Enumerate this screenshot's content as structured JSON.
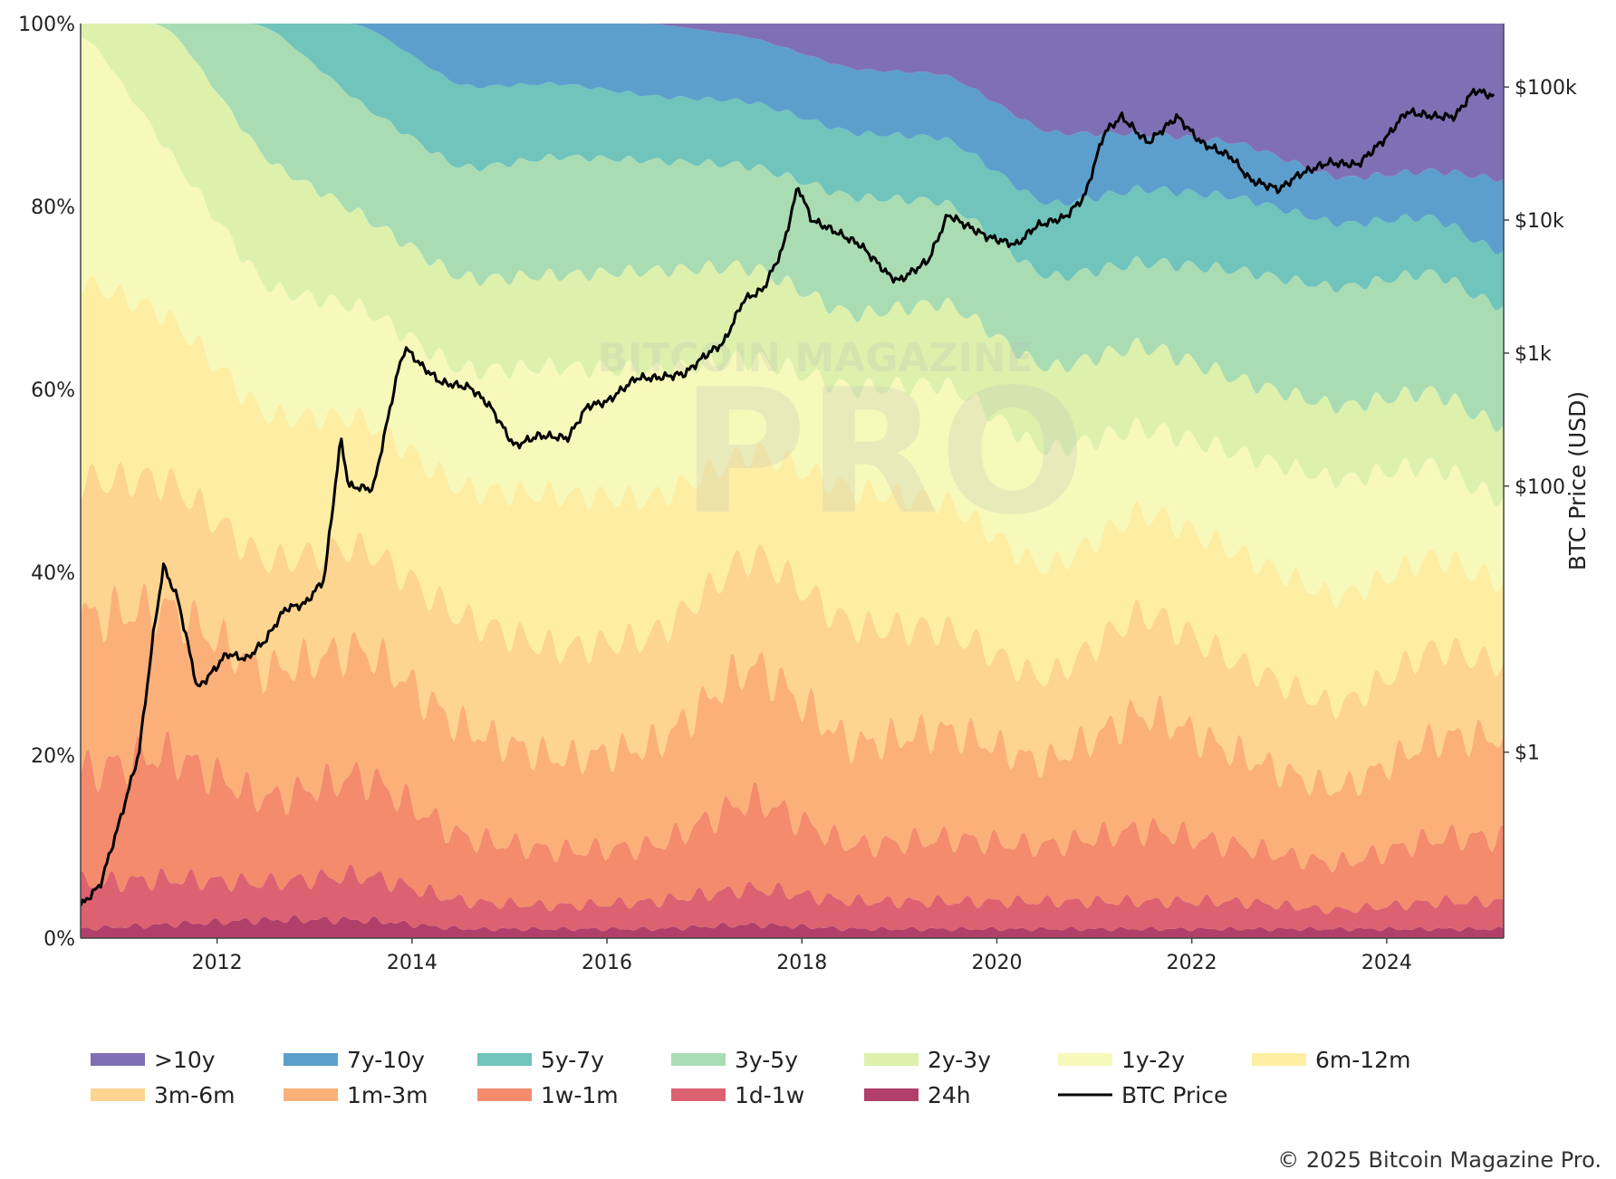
{
  "chart_data": {
    "type": "area",
    "stacking": "percent",
    "x_range": [
      "2010-08-01",
      "2025-03-01"
    ],
    "x_ticks": [
      "2012",
      "2014",
      "2016",
      "2018",
      "2020",
      "2022",
      "2024"
    ],
    "y_left_range": [
      0,
      100
    ],
    "y_left_ticks": [
      "0%",
      "20%",
      "40%",
      "60%",
      "80%",
      "100%"
    ],
    "y_right_label": "BTC Price (USD)",
    "y_right_scale": "log",
    "y_right_range": [
      0.04,
      300000
    ],
    "y_right_ticks": [
      "$1",
      "$100",
      "$1k",
      "$10k",
      "$100k"
    ],
    "legend_position": "bottom",
    "x": [
      2010.6,
      2011.5,
      2012.5,
      2013.5,
      2014.5,
      2015.5,
      2016.5,
      2017.5,
      2018.5,
      2019.5,
      2020.5,
      2021.5,
      2022.5,
      2023.5,
      2024.5,
      2025.1
    ],
    "series": [
      {
        "name": "24h",
        "color": "#b0406a",
        "values": [
          1,
          1.5,
          2,
          2,
          1,
          1,
          1,
          1.5,
          1,
          1,
          1,
          1,
          1,
          1,
          1,
          1
        ]
      },
      {
        "name": "1d-1w",
        "color": "#dc6272",
        "values": [
          5,
          5,
          4,
          5,
          3,
          2.5,
          3,
          4,
          3,
          3,
          3,
          3,
          3,
          2,
          3,
          3
        ]
      },
      {
        "name": "1w-1m",
        "color": "#f38b6c",
        "values": [
          12,
          14,
          9,
          11,
          7,
          6,
          6,
          10,
          6,
          7,
          6,
          8,
          6,
          5,
          7,
          7
        ]
      },
      {
        "name": "1m-3m",
        "color": "#fbb07a",
        "values": [
          17,
          16,
          14,
          14,
          12,
          10,
          11,
          15,
          11,
          12,
          9,
          13,
          10,
          8,
          11,
          11
        ]
      },
      {
        "name": "3m-6m",
        "color": "#fdd490",
        "values": [
          15,
          14,
          12,
          11,
          12,
          12,
          12,
          12,
          13,
          11,
          9,
          11,
          10,
          9,
          10,
          8
        ]
      },
      {
        "name": "6m-12m",
        "color": "#fdeea3",
        "values": [
          22,
          18,
          16,
          14,
          14,
          17,
          15,
          11,
          15,
          14,
          12,
          11,
          12,
          12,
          10,
          9
        ]
      },
      {
        "name": "1y-2y",
        "color": "#f7f9bb",
        "values": [
          28,
          18,
          14,
          12,
          13,
          14,
          14,
          10,
          11,
          13,
          13,
          9,
          11,
          13,
          10,
          9
        ]
      },
      {
        "name": "2y-3y",
        "color": "#ddf1ad",
        "values": [
          0,
          14,
          14,
          10,
          10,
          10,
          11,
          10,
          8,
          9,
          9,
          9,
          8,
          8,
          8,
          8
        ]
      },
      {
        "name": "3y-5y",
        "color": "#aadcb4",
        "values": [
          0,
          0,
          15,
          12,
          12,
          13,
          12,
          11,
          13,
          11,
          10,
          9,
          12,
          13,
          13,
          13
        ]
      },
      {
        "name": "5y-7y",
        "color": "#70c4bc",
        "values": [
          0,
          0,
          0,
          9,
          9,
          8,
          7,
          7,
          7,
          7,
          8,
          8,
          8,
          7,
          6,
          6
        ]
      },
      {
        "name": "7y-10y",
        "color": "#5d9fcc",
        "values": [
          0,
          0,
          0,
          0,
          7,
          6.5,
          8,
          7,
          7,
          7,
          8,
          6,
          6,
          5,
          5,
          8
        ]
      },
      {
        "name": ">10y",
        "color": "#7f70b5",
        "values": [
          0,
          0,
          0,
          0,
          0,
          0,
          0,
          1.5,
          5,
          5.5,
          12,
          12,
          13,
          17,
          16,
          17
        ]
      }
    ],
    "price_series": {
      "name": "BTC Price",
      "color": "#000000",
      "x": [
        2010.6,
        2010.8,
        2011.0,
        2011.2,
        2011.35,
        2011.45,
        2011.6,
        2011.8,
        2011.95,
        2012.1,
        2012.3,
        2012.5,
        2012.7,
        2012.9,
        2013.1,
        2013.27,
        2013.35,
        2013.6,
        2013.85,
        2013.93,
        2014.1,
        2014.3,
        2014.6,
        2014.8,
        2015.05,
        2015.3,
        2015.6,
        2015.8,
        2016.0,
        2016.3,
        2016.5,
        2016.8,
        2017.0,
        2017.2,
        2017.4,
        2017.6,
        2017.8,
        2017.96,
        2018.1,
        2018.3,
        2018.6,
        2018.9,
        2019.0,
        2019.3,
        2019.5,
        2019.7,
        2019.9,
        2020.2,
        2020.4,
        2020.7,
        2020.9,
        2021.1,
        2021.28,
        2021.55,
        2021.85,
        2022.1,
        2022.4,
        2022.6,
        2022.9,
        2023.1,
        2023.4,
        2023.7,
        2024.0,
        2024.2,
        2024.5,
        2024.7,
        2024.9,
        2025.1
      ],
      "values": [
        0.07,
        0.1,
        0.3,
        1,
        8,
        25,
        14,
        3,
        4,
        5.5,
        5,
        7,
        12,
        13,
        20,
        230,
        100,
        95,
        700,
        1100,
        800,
        600,
        550,
        400,
        200,
        240,
        230,
        400,
        430,
        650,
        650,
        700,
        950,
        1200,
        2500,
        3000,
        6000,
        18000,
        10000,
        8500,
        6500,
        3800,
        3500,
        5000,
        11000,
        9000,
        7500,
        6500,
        9000,
        10500,
        15000,
        45000,
        60000,
        38000,
        60000,
        38000,
        30000,
        20000,
        17000,
        22000,
        27000,
        26000,
        42000,
        65000,
        60000,
        60000,
        95000,
        85000
      ]
    }
  },
  "watermark": {
    "line1": "BITCOIN MAGAZINE",
    "line2": "PRO"
  },
  "legend": [
    {
      "label": ">10y",
      "color": "#7f70b5",
      "kind": "swatch"
    },
    {
      "label": "7y-10y",
      "color": "#5d9fcc",
      "kind": "swatch"
    },
    {
      "label": "5y-7y",
      "color": "#70c4bc",
      "kind": "swatch"
    },
    {
      "label": "3y-5y",
      "color": "#aadcb4",
      "kind": "swatch"
    },
    {
      "label": "2y-3y",
      "color": "#ddf1ad",
      "kind": "swatch"
    },
    {
      "label": "1y-2y",
      "color": "#f7f9bb",
      "kind": "swatch"
    },
    {
      "label": "6m-12m",
      "color": "#fdeea3",
      "kind": "swatch"
    },
    {
      "label": "3m-6m",
      "color": "#fdd490",
      "kind": "swatch"
    },
    {
      "label": "1m-3m",
      "color": "#fbb07a",
      "kind": "swatch"
    },
    {
      "label": "1w-1m",
      "color": "#f38b6c",
      "kind": "swatch"
    },
    {
      "label": "1d-1w",
      "color": "#dc6272",
      "kind": "swatch"
    },
    {
      "label": "24h",
      "color": "#b0406a",
      "kind": "swatch"
    },
    {
      "label": "BTC Price",
      "color": "#000000",
      "kind": "line"
    }
  ],
  "copyright": "© 2025 Bitcoin Magazine Pro."
}
